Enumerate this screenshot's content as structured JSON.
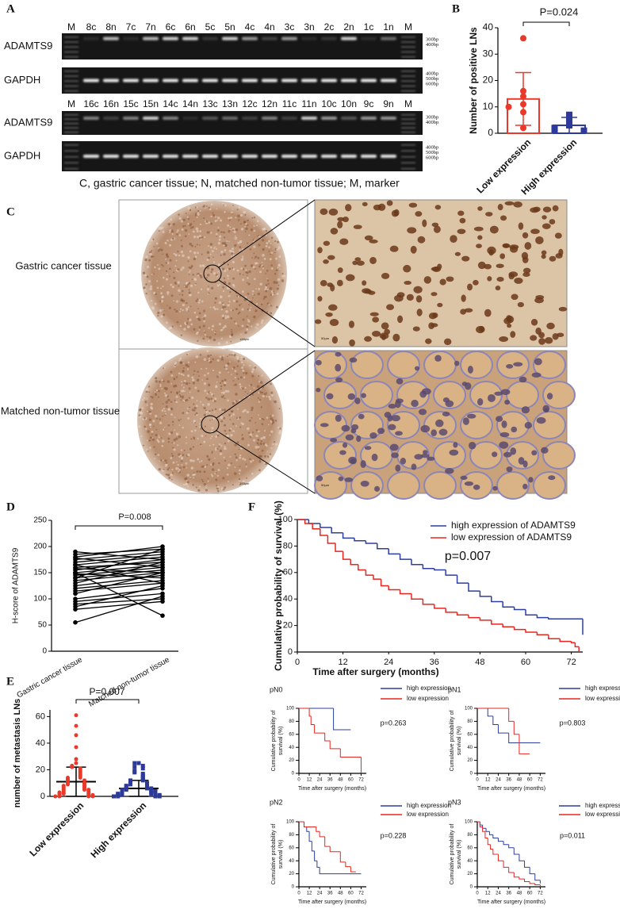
{
  "figure": {
    "A": {
      "label": "A",
      "gels": [
        {
          "lanes": [
            "M",
            "8c",
            "8n",
            "7c",
            "7n",
            "6c",
            "6n",
            "5c",
            "5n",
            "4c",
            "4n",
            "3c",
            "3n",
            "2c",
            "2n",
            "1c",
            "1n",
            "M"
          ],
          "rows": [
            {
              "name": "ADAMTS9",
              "markers": [
                "300bp",
                "400bp"
              ]
            },
            {
              "name": "GAPDH",
              "markers": [
                "400bp",
                "500bp",
                "600bp"
              ]
            }
          ]
        },
        {
          "lanes": [
            "M",
            "16c",
            "16n",
            "15c",
            "15n",
            "14c",
            "14n",
            "13c",
            "13n",
            "12c",
            "12n",
            "11c",
            "11n",
            "10c",
            "10n",
            "9c",
            "9n",
            "M"
          ],
          "rows": [
            {
              "name": "ADAMTS9",
              "markers": [
                "300bp",
                "400bp"
              ]
            },
            {
              "name": "GAPDH",
              "markers": [
                "400bp",
                "500bp",
                "600bp"
              ]
            }
          ]
        }
      ],
      "caption": "C, gastric cancer tissue; N, matched non-tumor tissue; M, marker"
    },
    "C": {
      "label": "C",
      "rows": [
        "Gastric cancer tissue",
        "Matched non-tumor tissue"
      ],
      "scale_bars": [
        "100μm",
        "50μm"
      ]
    }
  },
  "chart_data": [
    {
      "type": "scatter_bar",
      "panel": "B",
      "annotation": "P=0.024",
      "ylabel": "Number of positive LNs",
      "bar": true,
      "categories": [
        "Low expression",
        "High expression"
      ],
      "ylim": [
        0,
        40
      ],
      "yticks": [
        0,
        10,
        20,
        30,
        40
      ],
      "groups": [
        {
          "color": "#e8392a",
          "marker": "circle",
          "mean": 13,
          "sd": 10,
          "points": [
            36,
            16,
            14,
            11,
            10,
            8,
            2
          ]
        },
        {
          "color": "#2e3a9a",
          "marker": "square",
          "mean": 3,
          "sd": 3,
          "points": [
            7,
            5,
            3,
            2,
            1,
            1
          ]
        }
      ]
    },
    {
      "type": "paired",
      "panel": "D",
      "annotation": "P=0.008",
      "ylabel": "H-score of ADAMTS9",
      "categories": [
        "Gastric cancer tissue",
        "Matched non-tumor tissue"
      ],
      "ylim": [
        0,
        250
      ],
      "yticks": [
        0,
        50,
        100,
        150,
        200,
        250
      ],
      "pairs": [
        [
          190,
          175
        ],
        [
          185,
          195
        ],
        [
          180,
          200
        ],
        [
          178,
          160
        ],
        [
          175,
          190
        ],
        [
          170,
          185
        ],
        [
          165,
          180
        ],
        [
          160,
          170
        ],
        [
          158,
          150
        ],
        [
          155,
          175
        ],
        [
          150,
          165
        ],
        [
          148,
          140
        ],
        [
          145,
          160
        ],
        [
          140,
          155
        ],
        [
          135,
          150
        ],
        [
          130,
          170
        ],
        [
          125,
          145
        ],
        [
          120,
          135
        ],
        [
          115,
          130
        ],
        [
          110,
          150
        ],
        [
          100,
          120
        ],
        [
          95,
          110
        ],
        [
          90,
          100
        ],
        [
          85,
          125
        ],
        [
          80,
          95
        ],
        [
          150,
          68
        ],
        [
          55,
          105
        ],
        [
          140,
          195
        ],
        [
          165,
          130
        ]
      ]
    },
    {
      "type": "km",
      "panel": "F",
      "annotation": "p=0.007",
      "ylabel": "Cumulative probability of survival (%)",
      "xlabel": "Time after surgery (months)",
      "xlim": [
        0,
        75
      ],
      "xticks": [
        0,
        12,
        24,
        36,
        48,
        60,
        72
      ],
      "ylim": [
        0,
        100
      ],
      "yticks": [
        0,
        20,
        40,
        60,
        80,
        100
      ],
      "series": [
        {
          "name": "high expression of ADAMTS9",
          "color": "#2c3fa0",
          "x": [
            0,
            3,
            6,
            9,
            12,
            15,
            18,
            21,
            24,
            27,
            30,
            33,
            36,
            39,
            42,
            45,
            48,
            51,
            54,
            57,
            60,
            63,
            66,
            75
          ],
          "values": [
            100,
            97,
            94,
            90,
            86,
            84,
            82,
            78,
            74,
            70,
            66,
            63,
            62,
            58,
            52,
            46,
            42,
            38,
            34,
            32,
            28,
            26,
            25,
            13
          ]
        },
        {
          "name": "low expression of ADAMTS9",
          "color": "#e8261f",
          "x": [
            0,
            2,
            4,
            6,
            8,
            10,
            12,
            14,
            16,
            18,
            20,
            22,
            24,
            27,
            30,
            33,
            36,
            39,
            42,
            45,
            48,
            51,
            54,
            57,
            60,
            63,
            66,
            69,
            72,
            73,
            74
          ],
          "values": [
            100,
            97,
            93,
            88,
            82,
            76,
            70,
            66,
            62,
            58,
            55,
            50,
            47,
            44,
            40,
            36,
            33,
            30,
            28,
            26,
            24,
            21,
            19,
            17,
            15,
            13,
            10,
            8,
            7,
            4,
            0
          ]
        }
      ]
    },
    {
      "type": "scatter_bar",
      "panel": "E",
      "annotation": "P=0.007",
      "ylabel": "number of metastasis LNs",
      "bar": false,
      "categories": [
        "Low expression",
        "High expression"
      ],
      "ylim": [
        0,
        65
      ],
      "yticks": [
        0,
        20,
        40,
        60
      ],
      "groups": [
        {
          "color": "#e8392a",
          "marker": "circle",
          "mean": 11,
          "sd": 11,
          "points": [
            61,
            53,
            46,
            37,
            28,
            25,
            23,
            22,
            21,
            20,
            19,
            18,
            17,
            16,
            15,
            14,
            14,
            13,
            12,
            12,
            11,
            10,
            10,
            9,
            9,
            8,
            8,
            7,
            7,
            6,
            6,
            5,
            5,
            5,
            4,
            4,
            3,
            3,
            3,
            2,
            2,
            2,
            1,
            1,
            1,
            0,
            0,
            0,
            0
          ]
        },
        {
          "color": "#2e3a9a",
          "marker": "square",
          "mean": 6,
          "sd": 6,
          "points": [
            25,
            25,
            23,
            22,
            21,
            19,
            18,
            17,
            16,
            15,
            14,
            13,
            12,
            12,
            11,
            10,
            10,
            9,
            9,
            8,
            8,
            7,
            7,
            6,
            6,
            6,
            5,
            5,
            5,
            4,
            4,
            4,
            3,
            3,
            3,
            2,
            2,
            2,
            2,
            1,
            1,
            1,
            1,
            0,
            0,
            0,
            0
          ]
        }
      ]
    },
    {
      "type": "km",
      "panel": "pN0",
      "annotation": "p=0.263",
      "ylabel": [
        "Cumulative probability of",
        "survival (%)"
      ],
      "xlabel": "Time after surgery (months)",
      "xlim": [
        0,
        78
      ],
      "xticks": [
        0,
        12,
        24,
        36,
        48,
        60,
        72
      ],
      "ylim": [
        0,
        100
      ],
      "yticks": [
        0,
        20,
        40,
        60,
        80,
        100
      ],
      "series": [
        {
          "name": "high expression",
          "color": "#2c3fa0",
          "x": [
            0,
            40,
            60
          ],
          "values": [
            100,
            67,
            67
          ]
        },
        {
          "name": "low expression",
          "color": "#e8261f",
          "x": [
            0,
            12,
            14,
            18,
            30,
            36,
            48,
            72
          ],
          "values": [
            100,
            88,
            75,
            62,
            50,
            38,
            25,
            0
          ]
        }
      ]
    },
    {
      "type": "km",
      "panel": "pN1",
      "annotation": "p=0.803",
      "ylabel": [
        "Cumulative probability of",
        "survival (%)"
      ],
      "xlabel": "Time after surgery (months)",
      "xlim": [
        0,
        78
      ],
      "xticks": [
        0,
        12,
        24,
        36,
        48,
        60,
        72
      ],
      "ylim": [
        0,
        100
      ],
      "yticks": [
        0,
        20,
        40,
        60,
        80,
        100
      ],
      "series": [
        {
          "name": "high expression",
          "color": "#2c3fa0",
          "x": [
            0,
            12,
            18,
            24,
            36,
            72
          ],
          "values": [
            100,
            88,
            75,
            62,
            47,
            47
          ]
        },
        {
          "name": "low expression",
          "color": "#e8261f",
          "x": [
            0,
            36,
            42,
            48,
            60
          ],
          "values": [
            100,
            80,
            60,
            30,
            30
          ]
        }
      ]
    },
    {
      "type": "km",
      "panel": "pN2",
      "annotation": "p=0.228",
      "ylabel": [
        "Cumulative probability of",
        "survival (%)"
      ],
      "xlabel": "Time after surgery (months)",
      "xlim": [
        0,
        78
      ],
      "xticks": [
        0,
        12,
        24,
        36,
        48,
        60,
        72
      ],
      "ylim": [
        0,
        100
      ],
      "yticks": [
        0,
        20,
        40,
        60,
        80,
        100
      ],
      "series": [
        {
          "name": "high expression",
          "color": "#2c3fa0",
          "x": [
            0,
            6,
            9,
            12,
            15,
            18,
            21,
            24,
            72
          ],
          "values": [
            100,
            92,
            85,
            70,
            55,
            40,
            30,
            20,
            20
          ]
        },
        {
          "name": "low expression",
          "color": "#e8261f",
          "x": [
            0,
            6,
            20,
            24,
            30,
            36,
            48,
            54,
            60,
            66
          ],
          "values": [
            100,
            92,
            85,
            77,
            62,
            54,
            38,
            31,
            23,
            23
          ]
        }
      ]
    },
    {
      "type": "km",
      "panel": "pN3",
      "annotation": "p=0.011",
      "ylabel": [
        "Cumulative probability of",
        "survival (%)"
      ],
      "xlabel": "Time after surgery (months)",
      "xlim": [
        0,
        78
      ],
      "xticks": [
        0,
        12,
        24,
        36,
        48,
        60,
        72
      ],
      "ylim": [
        0,
        100
      ],
      "yticks": [
        0,
        20,
        40,
        60,
        80,
        100
      ],
      "series": [
        {
          "name": "high expression",
          "color": "#2c3fa0",
          "x": [
            0,
            3,
            6,
            10,
            14,
            18,
            24,
            30,
            36,
            42,
            48,
            54,
            60,
            66,
            72
          ],
          "values": [
            100,
            95,
            90,
            85,
            80,
            75,
            70,
            65,
            60,
            50,
            40,
            30,
            20,
            10,
            5
          ]
        },
        {
          "name": "low expression",
          "color": "#e8261f",
          "x": [
            0,
            3,
            6,
            9,
            12,
            15,
            18,
            24,
            30,
            36,
            42,
            48,
            54,
            60,
            66,
            72
          ],
          "values": [
            100,
            92,
            85,
            75,
            65,
            58,
            50,
            40,
            30,
            22,
            15,
            12,
            8,
            5,
            3,
            0
          ]
        }
      ]
    }
  ]
}
